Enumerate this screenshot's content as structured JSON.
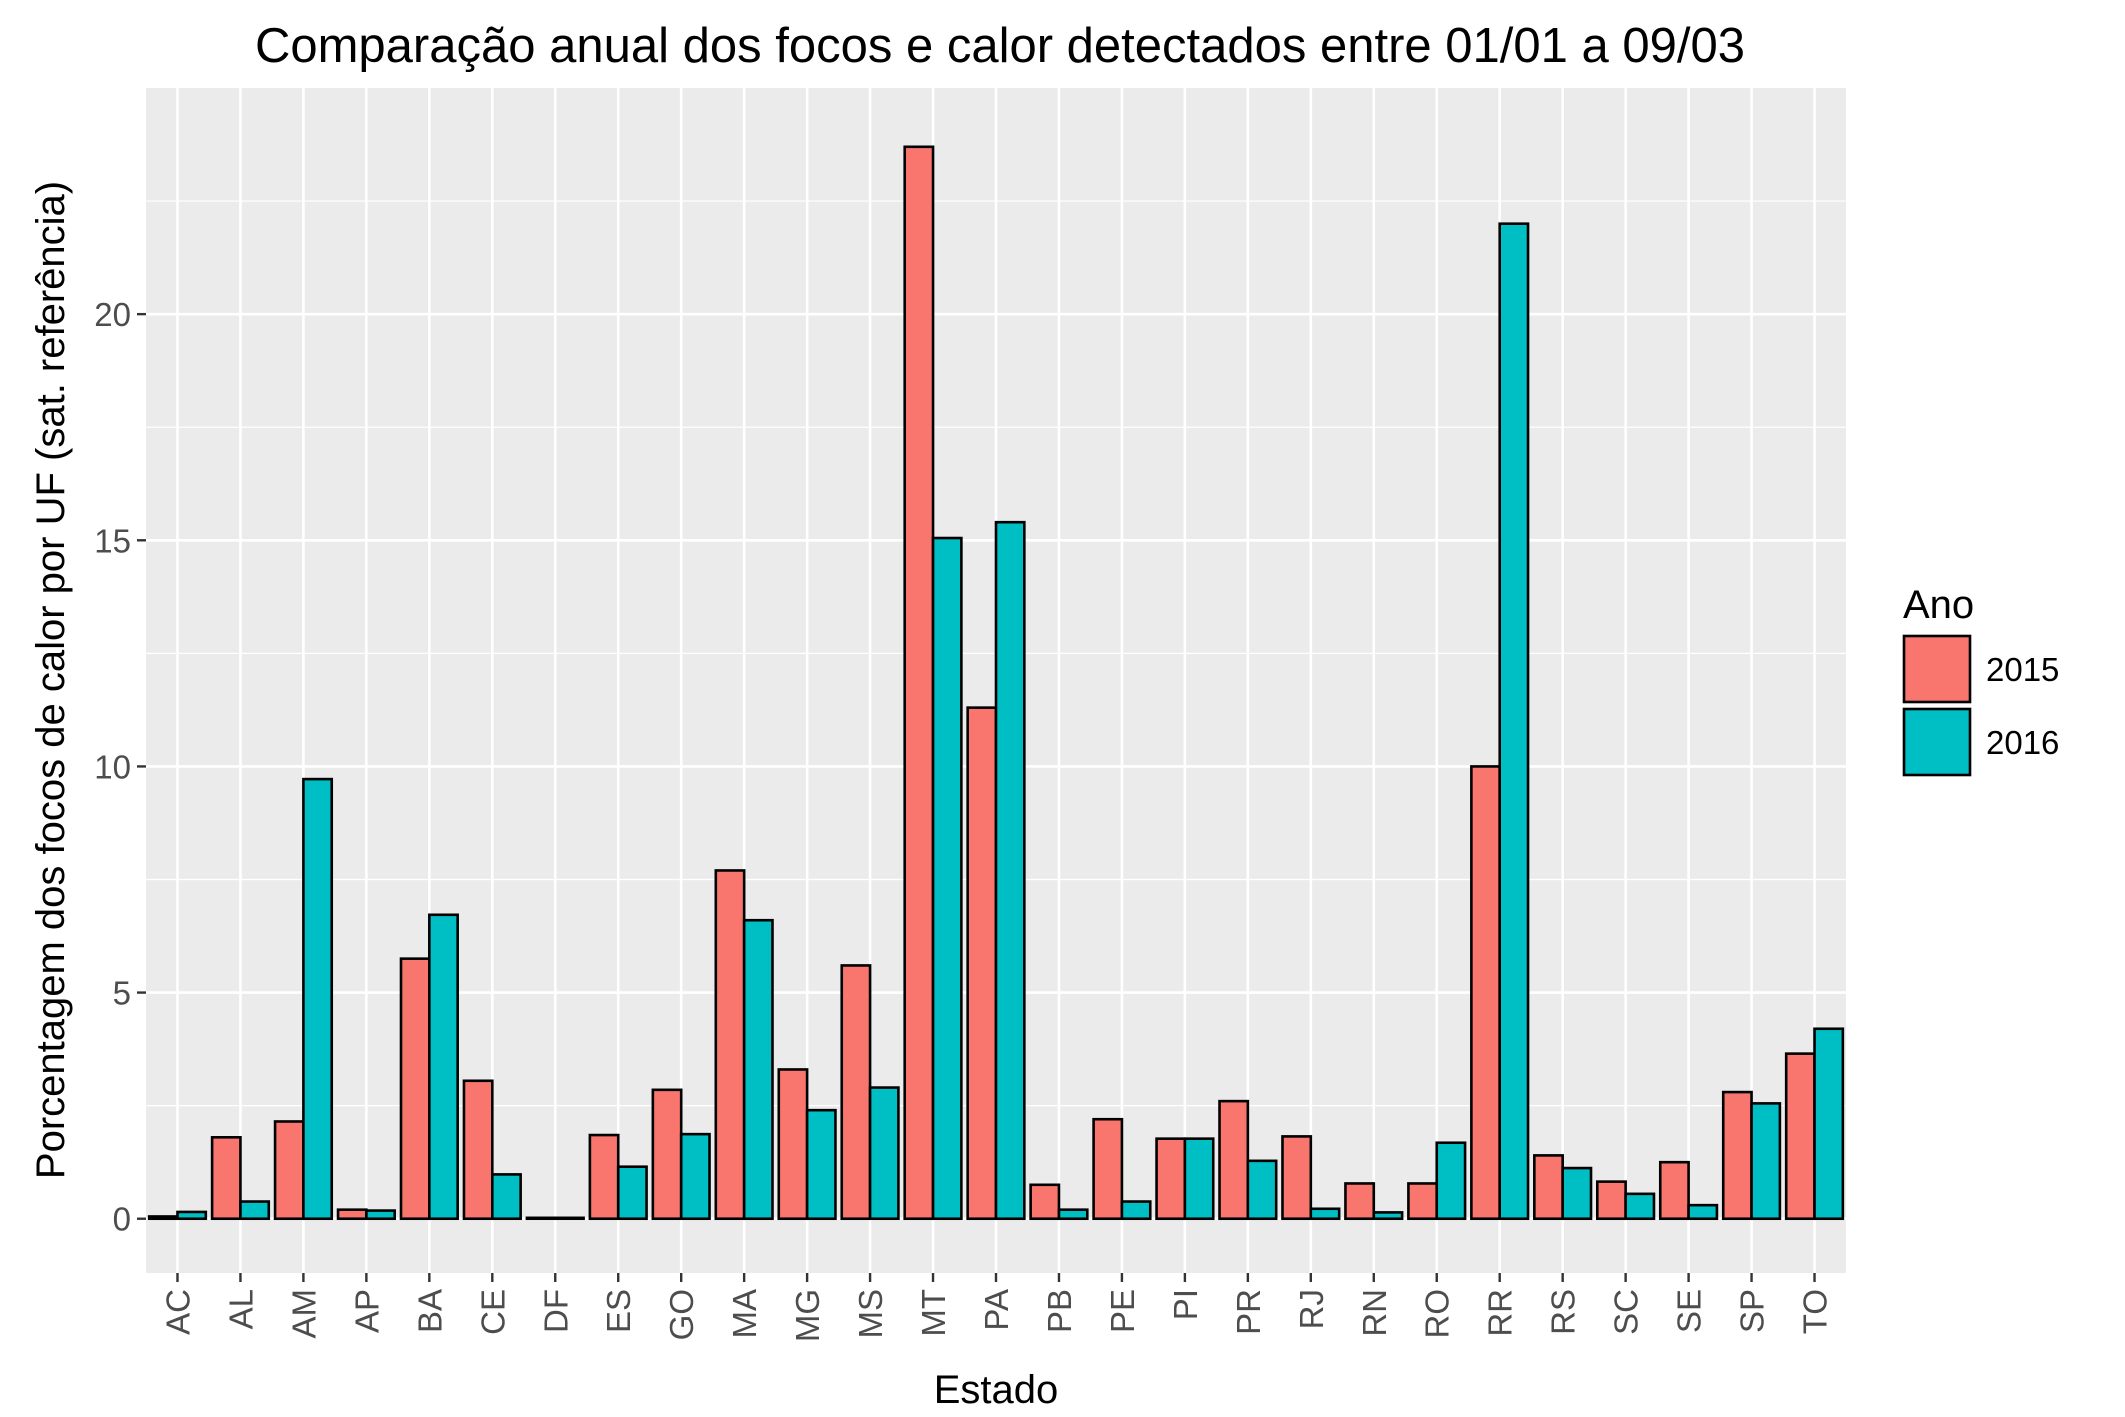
{
  "chart_data": {
    "type": "bar",
    "title": "Comparação anual dos focos e calor detectados entre 01/01 a 09/03",
    "xlabel": "Estado",
    "ylabel": "Porcentagem dos focos de calor por UF (sat. referência)",
    "categories": [
      "AC",
      "AL",
      "AM",
      "AP",
      "BA",
      "CE",
      "DF",
      "ES",
      "GO",
      "MA",
      "MG",
      "MS",
      "MT",
      "PA",
      "PB",
      "PE",
      "PI",
      "PR",
      "RJ",
      "RN",
      "RO",
      "RR",
      "RS",
      "SC",
      "SE",
      "SP",
      "TO"
    ],
    "series": [
      {
        "name": "2015",
        "color": "#F8766D",
        "values": [
          0.05,
          1.8,
          2.15,
          0.2,
          5.75,
          3.05,
          0.02,
          1.85,
          2.85,
          7.7,
          3.3,
          5.6,
          23.7,
          11.3,
          0.75,
          2.2,
          1.77,
          2.6,
          1.82,
          0.78,
          0.78,
          10.0,
          1.4,
          0.82,
          1.25,
          2.8,
          3.65
        ]
      },
      {
        "name": "2016",
        "color": "#00BFC4",
        "values": [
          0.15,
          0.38,
          9.72,
          0.18,
          6.72,
          0.98,
          0.02,
          1.15,
          1.87,
          6.6,
          2.4,
          2.9,
          15.05,
          15.4,
          0.2,
          0.38,
          1.77,
          1.28,
          0.22,
          0.14,
          1.68,
          22.0,
          1.12,
          0.55,
          0.3,
          2.55,
          4.2
        ]
      }
    ],
    "yticks": [
      0,
      5,
      10,
      15,
      20
    ],
    "ylim": [
      -1.2,
      25
    ],
    "grid": true,
    "panel_background": "#EBEBEB",
    "legend": {
      "title": "Ano",
      "position": "right"
    }
  }
}
